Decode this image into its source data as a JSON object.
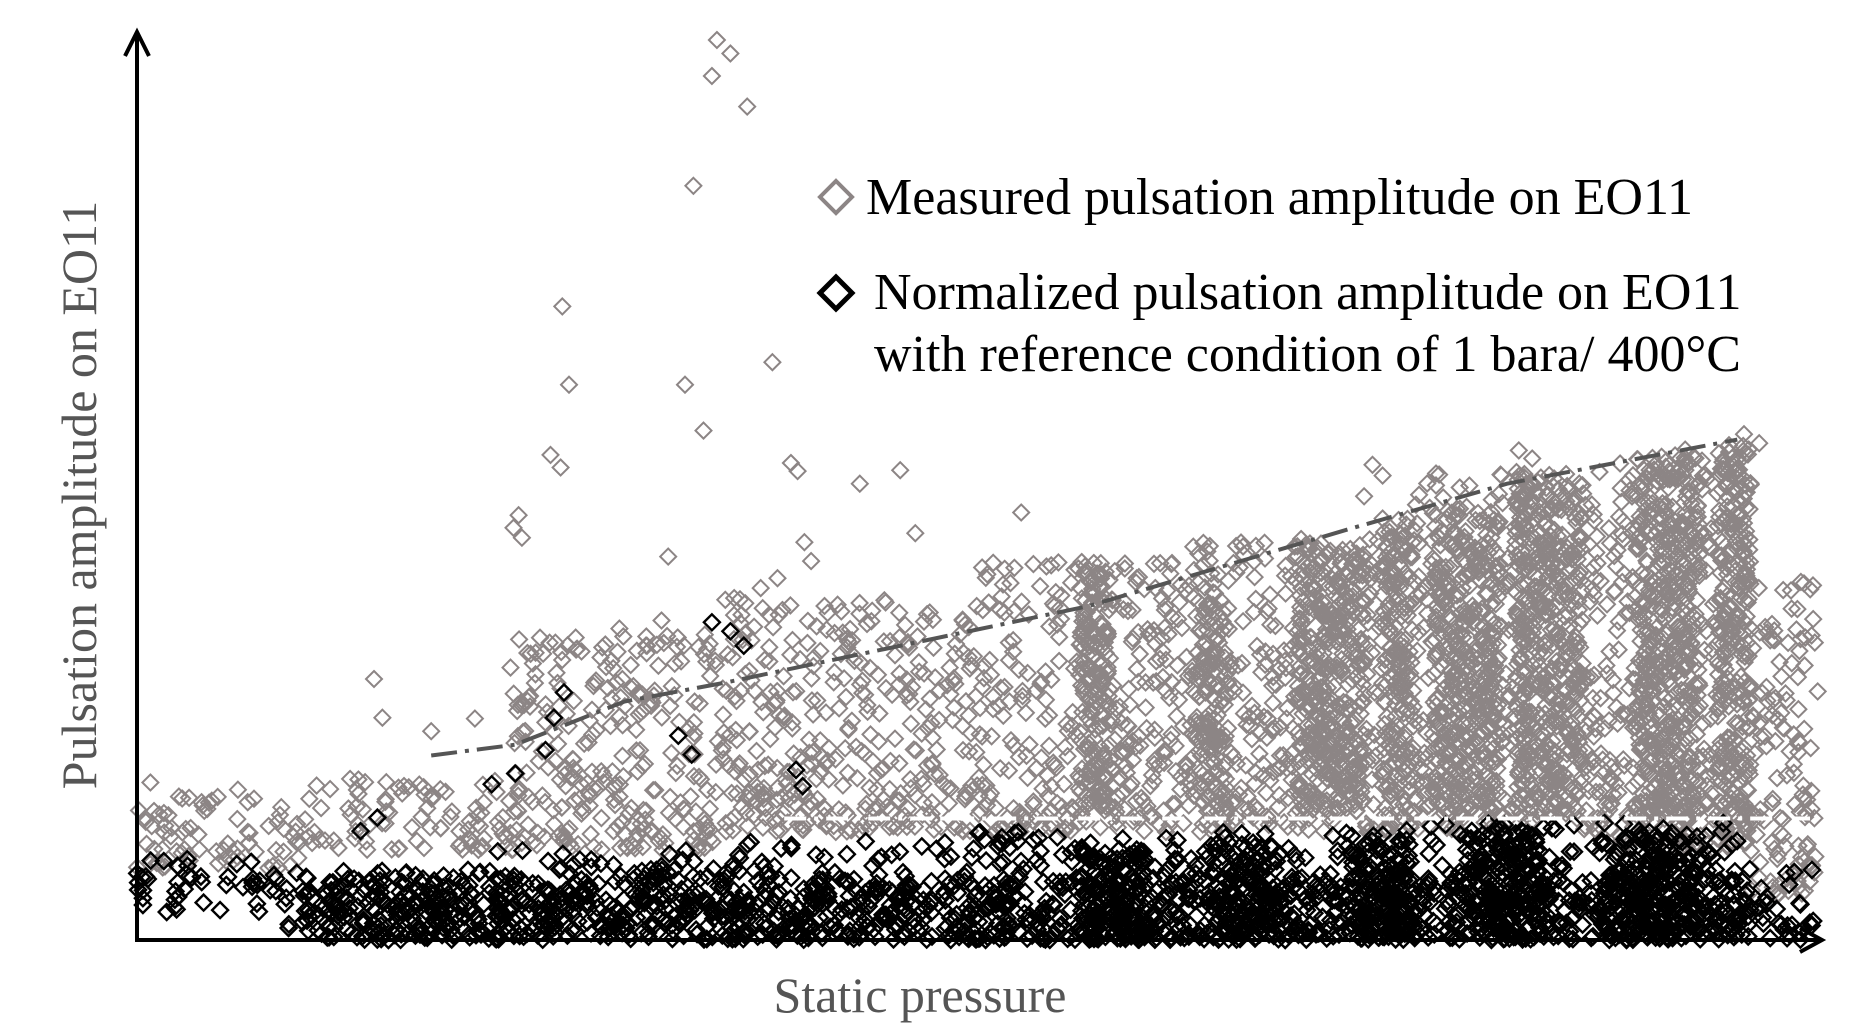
{
  "chart_data": {
    "type": "scatter",
    "xlabel": "Static pressure",
    "ylabel": "Pulsation amplitude on EO11",
    "xlim": [
      0,
      100
    ],
    "ylim": [
      0,
      100
    ],
    "grid": false,
    "legend_position": "top-right",
    "colors": {
      "measured": "#8c8585",
      "normalized": "#000000",
      "trend": "#555555",
      "reference_line": "#ffffff"
    },
    "series": [
      {
        "key": "measured",
        "name": "Measured pulsation amplitude on EO11",
        "marker": "hollow-diamond",
        "bands": [
          {
            "x": [
              0,
              10
            ],
            "y_low": 8,
            "y_high": 16
          },
          {
            "x": [
              10,
              22
            ],
            "y_low": 10,
            "y_high": 18
          },
          {
            "x": [
              22,
              35
            ],
            "y_low": 10,
            "y_high": 34
          },
          {
            "x": [
              35,
              50
            ],
            "y_low": 12,
            "y_high": 38
          },
          {
            "x": [
              50,
              62
            ],
            "y_low": 12,
            "y_high": 42
          },
          {
            "x": [
              62,
              76
            ],
            "y_low": 12,
            "y_high": 45
          },
          {
            "x": [
              76,
              88
            ],
            "y_low": 12,
            "y_high": 52
          },
          {
            "x": [
              88,
              96
            ],
            "y_low": 10,
            "y_high": 55
          },
          {
            "x": [
              96,
              100
            ],
            "y_low": 5,
            "y_high": 40
          }
        ],
        "dense_blocks": [
          {
            "x": [
              56,
              58
            ],
            "y_low": 14,
            "y_high": 42
          },
          {
            "x": [
              63,
              65
            ],
            "y_low": 14,
            "y_high": 40
          },
          {
            "x": [
              69,
              73
            ],
            "y_low": 14,
            "y_high": 44
          },
          {
            "x": [
              74,
              76
            ],
            "y_low": 14,
            "y_high": 47
          },
          {
            "x": [
              77,
              81
            ],
            "y_low": 14,
            "y_high": 48
          },
          {
            "x": [
              82,
              86
            ],
            "y_low": 14,
            "y_high": 52
          },
          {
            "x": [
              89,
              93
            ],
            "y_low": 14,
            "y_high": 54
          },
          {
            "x": [
              94,
              96
            ],
            "y_low": 12,
            "y_high": 55
          }
        ],
        "outliers": [
          [
            34.5,
            100
          ],
          [
            35.3,
            98.5
          ],
          [
            34.2,
            96
          ],
          [
            36.3,
            92.6
          ],
          [
            33.1,
            83.8
          ],
          [
            25.3,
            70.4
          ],
          [
            25.7,
            61.7
          ],
          [
            32.6,
            61.7
          ],
          [
            33.7,
            56.6
          ],
          [
            37.8,
            64.2
          ],
          [
            24.6,
            53.9
          ],
          [
            25.2,
            52.5
          ],
          [
            39.3,
            52.1
          ],
          [
            38.9,
            53
          ],
          [
            43.0,
            50.7
          ],
          [
            45.4,
            52.2
          ],
          [
            22.7,
            47.2
          ],
          [
            22.4,
            45.8
          ],
          [
            22.9,
            44.7
          ],
          [
            31.6,
            42.6
          ],
          [
            39.7,
            44.2
          ],
          [
            40.1,
            42.1
          ],
          [
            38.1,
            40.2
          ],
          [
            56.2,
            42.0
          ],
          [
            54.1,
            41.5
          ],
          [
            73.5,
            52.8
          ],
          [
            73.0,
            49.3
          ],
          [
            74.1,
            51.6
          ],
          [
            82.2,
            54.4
          ],
          [
            83.0,
            53.5
          ],
          [
            87.0,
            52.0
          ],
          [
            95.6,
            56.2
          ],
          [
            96.5,
            55.2
          ],
          [
            14.1,
            29.0
          ],
          [
            14.6,
            24.7
          ],
          [
            28.7,
            34.6
          ],
          [
            31.2,
            35.5
          ],
          [
            26.1,
            33.6
          ],
          [
            35.0,
            37.8
          ],
          [
            37.1,
            39.1
          ],
          [
            41.5,
            34.1
          ],
          [
            47.0,
            36.2
          ],
          [
            52.6,
            47.5
          ],
          [
            46.3,
            45.2
          ],
          [
            60.5,
            41.8
          ],
          [
            99.7,
            39.4
          ],
          [
            99.2,
            30.5
          ],
          [
            17.5,
            23.2
          ],
          [
            20.1,
            24.6
          ],
          [
            30.8,
            27.7
          ],
          [
            0.8,
            17.5
          ],
          [
            4.8,
            15.9
          ],
          [
            6.0,
            16.7
          ],
          [
            3.1,
            15.8
          ],
          [
            8.5,
            13.9
          ],
          [
            1.6,
            14.1
          ],
          [
            10.0,
            13.4
          ]
        ]
      },
      {
        "key": "normalized",
        "name": "Normalized pulsation amplitude on EO11\nwith reference condition of 1 bara/ 400°C",
        "marker": "hollow-diamond",
        "bands": [
          {
            "x": [
              0,
              9
            ],
            "y_low": 3,
            "y_high": 9
          },
          {
            "x": [
              9,
              20
            ],
            "y_low": 0,
            "y_high": 8
          },
          {
            "x": [
              20,
              35
            ],
            "y_low": 0,
            "y_high": 10
          },
          {
            "x": [
              35,
              50
            ],
            "y_low": 0,
            "y_high": 11
          },
          {
            "x": [
              50,
              75
            ],
            "y_low": 0,
            "y_high": 12
          },
          {
            "x": [
              75,
              96
            ],
            "y_low": 0,
            "y_high": 13
          },
          {
            "x": [
              96,
              100
            ],
            "y_low": 0,
            "y_high": 8
          }
        ],
        "dense_blocks": [
          {
            "x": [
              10,
              96
            ],
            "y_low": 0,
            "y_high": 7
          },
          {
            "x": [
              56,
              60
            ],
            "y_low": 0,
            "y_high": 10
          },
          {
            "x": [
              64,
              68
            ],
            "y_low": 0,
            "y_high": 11
          },
          {
            "x": [
              72,
              76
            ],
            "y_low": 0,
            "y_high": 11
          },
          {
            "x": [
              79,
              84
            ],
            "y_low": 0,
            "y_high": 12
          },
          {
            "x": [
              87,
              93
            ],
            "y_low": 0,
            "y_high": 12
          }
        ],
        "outliers": [
          [
            34.2,
            35.3
          ],
          [
            35.3,
            34.3
          ],
          [
            36.1,
            32.7
          ],
          [
            25.4,
            27.5
          ],
          [
            24.8,
            24.7
          ],
          [
            24.3,
            21.1
          ],
          [
            32.2,
            22.7
          ],
          [
            33.0,
            20.6
          ],
          [
            39.2,
            18.9
          ],
          [
            39.6,
            17.1
          ],
          [
            22.5,
            18.5
          ],
          [
            21.1,
            17.3
          ],
          [
            14.3,
            13.6
          ],
          [
            13.3,
            12.1
          ]
        ]
      }
    ],
    "trend_line": [
      [
        17.5,
        20.5
      ],
      [
        22.5,
        21.7
      ],
      [
        29.0,
        26.5
      ],
      [
        35.0,
        28.6
      ],
      [
        56.6,
        37.1
      ],
      [
        72.0,
        45.6
      ],
      [
        81.5,
        50.7
      ],
      [
        95.2,
        55.6
      ]
    ],
    "reference_line": {
      "y": 13.5,
      "x": [
        38.5,
        100
      ]
    }
  }
}
